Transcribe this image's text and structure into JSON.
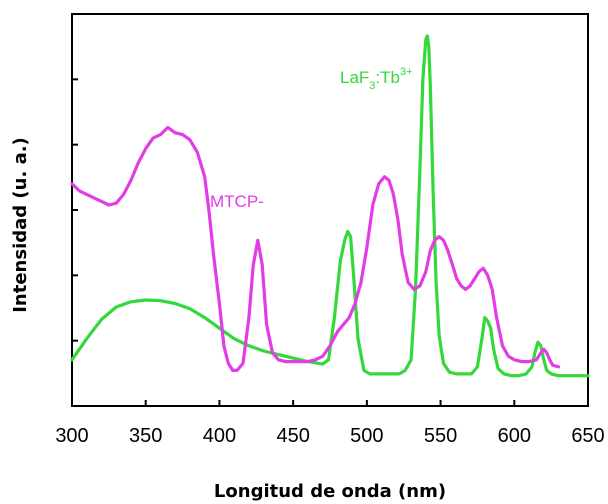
{
  "chart_data": {
    "type": "line",
    "xlabel": "Longitud de onda (nm)",
    "ylabel": "Intensidad (u. a.)",
    "xlim": [
      300,
      650
    ],
    "ylim": [
      0,
      1
    ],
    "x_ticks": [
      300,
      350,
      400,
      450,
      500,
      550,
      600,
      650
    ],
    "x_tick_labels": [
      "300",
      "350",
      "400",
      "450",
      "500",
      "550",
      "600",
      "650"
    ],
    "y_tick_labels": [],
    "grid": false,
    "annotations": [
      {
        "text": "LaF",
        "sub": "3",
        "mid": ":Tb",
        "sup": "3+",
        "color": "#33d83a"
      },
      {
        "text": "MTCP-",
        "color": "#e23ce6"
      }
    ],
    "series": [
      {
        "color": "#33d83a",
        "x": [
          300,
          310,
          320,
          330,
          340,
          350,
          360,
          370,
          380,
          390,
          400,
          410,
          420,
          430,
          440,
          450,
          460,
          470,
          474,
          478,
          482,
          485,
          487,
          489,
          491,
          494,
          498,
          502,
          507,
          512,
          517,
          522,
          526,
          530,
          533,
          536,
          538,
          540,
          541,
          542,
          543,
          545,
          547,
          549,
          552,
          556,
          561,
          566,
          571,
          575,
          578,
          580,
          582,
          584,
          586,
          589,
          593,
          598,
          603,
          608,
          612,
          614,
          616,
          618,
          620,
          622,
          625,
          630,
          640,
          650
        ],
        "y": [
          0.08,
          0.14,
          0.195,
          0.23,
          0.245,
          0.25,
          0.248,
          0.24,
          0.225,
          0.2,
          0.17,
          0.14,
          0.12,
          0.105,
          0.095,
          0.085,
          0.075,
          0.068,
          0.08,
          0.2,
          0.36,
          0.42,
          0.445,
          0.43,
          0.32,
          0.14,
          0.05,
          0.04,
          0.04,
          0.04,
          0.04,
          0.04,
          0.05,
          0.08,
          0.28,
          0.62,
          0.88,
          0.99,
          1.0,
          0.97,
          0.86,
          0.55,
          0.3,
          0.15,
          0.07,
          0.045,
          0.04,
          0.04,
          0.04,
          0.06,
          0.14,
          0.2,
          0.19,
          0.17,
          0.11,
          0.055,
          0.04,
          0.035,
          0.035,
          0.04,
          0.06,
          0.1,
          0.13,
          0.12,
          0.08,
          0.05,
          0.04,
          0.035,
          0.035,
          0.035
        ]
      },
      {
        "color": "#e23ce6",
        "x": [
          300,
          305,
          310,
          315,
          320,
          325,
          330,
          335,
          340,
          345,
          350,
          355,
          360,
          365,
          370,
          375,
          380,
          385,
          390,
          393,
          396,
          400,
          403,
          406,
          409,
          412,
          416,
          420,
          423,
          426,
          429,
          432,
          436,
          440,
          445,
          450,
          455,
          460,
          465,
          470,
          475,
          480,
          484,
          488,
          492,
          496,
          500,
          504,
          508,
          512,
          515,
          518,
          521,
          524,
          528,
          532,
          536,
          540,
          543,
          546,
          549,
          552,
          555,
          558,
          561,
          564,
          567,
          570,
          573,
          576,
          579,
          582,
          585,
          588,
          592,
          596,
          600,
          605,
          610,
          615,
          618,
          620,
          622,
          624,
          626,
          630
        ],
        "y": [
          0.58,
          0.56,
          0.55,
          0.54,
          0.53,
          0.52,
          0.525,
          0.55,
          0.59,
          0.64,
          0.68,
          0.71,
          0.72,
          0.74,
          0.725,
          0.72,
          0.705,
          0.67,
          0.6,
          0.5,
          0.38,
          0.24,
          0.12,
          0.07,
          0.05,
          0.05,
          0.07,
          0.2,
          0.35,
          0.42,
          0.35,
          0.18,
          0.1,
          0.08,
          0.075,
          0.075,
          0.075,
          0.075,
          0.08,
          0.09,
          0.12,
          0.16,
          0.18,
          0.2,
          0.24,
          0.3,
          0.4,
          0.52,
          0.58,
          0.6,
          0.59,
          0.55,
          0.48,
          0.38,
          0.3,
          0.28,
          0.29,
          0.33,
          0.39,
          0.42,
          0.43,
          0.42,
          0.39,
          0.35,
          0.31,
          0.29,
          0.28,
          0.29,
          0.31,
          0.33,
          0.34,
          0.32,
          0.28,
          0.2,
          0.12,
          0.09,
          0.08,
          0.075,
          0.075,
          0.08,
          0.1,
          0.11,
          0.1,
          0.08,
          0.065,
          0.06
        ]
      }
    ]
  }
}
